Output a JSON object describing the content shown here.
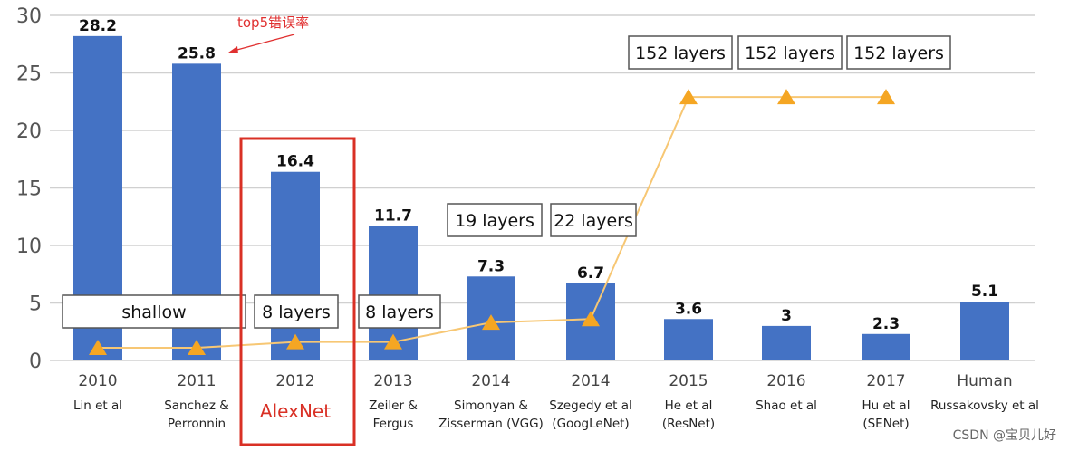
{
  "chart_data": {
    "type": "bar",
    "title": "",
    "xlabel": "",
    "ylabel": "",
    "ylim": [
      0,
      30
    ],
    "yticks": [
      0,
      5,
      10,
      15,
      20,
      25,
      30
    ],
    "grid": true,
    "categories": [
      {
        "year": "2010",
        "name": [
          "Lin et al"
        ]
      },
      {
        "year": "2011",
        "name": [
          "Sanchez &",
          "Perronnin"
        ]
      },
      {
        "year": "2012",
        "name": [
          "AlexNet"
        ],
        "highlight": true
      },
      {
        "year": "2013",
        "name": [
          "Zeiler &",
          "Fergus"
        ]
      },
      {
        "year": "2014",
        "name": [
          "Simonyan &",
          "Zisserman (VGG)"
        ]
      },
      {
        "year": "2014",
        "name": [
          "Szegedy et al",
          "(GoogLeNet)"
        ]
      },
      {
        "year": "2015",
        "name": [
          "He et al",
          "(ResNet)"
        ]
      },
      {
        "year": "2016",
        "name": [
          "Shao et al"
        ]
      },
      {
        "year": "2017",
        "name": [
          "Hu et al",
          "(SENet)"
        ]
      },
      {
        "year": "Human",
        "name": [
          "Russakovsky et al"
        ]
      }
    ],
    "values": [
      28.2,
      25.8,
      16.4,
      11.7,
      7.3,
      6.7,
      3.6,
      3,
      2.3,
      5.1
    ],
    "value_labels": [
      "28.2",
      "25.8",
      "16.4",
      "11.7",
      "7.3",
      "6.7",
      "3.6",
      "3",
      "2.3",
      "5.1"
    ],
    "bar_color": "#4472c4",
    "depth_series": {
      "marker": "triangle",
      "color": "#f5a623",
      "values": [
        1.1,
        1.1,
        1.6,
        1.6,
        3.3,
        3.6,
        22.9,
        22.9,
        22.9
      ]
    },
    "depth_labels": [
      {
        "text": "shallow"
      },
      {
        "text": "8 layers"
      },
      {
        "text": "8 layers"
      },
      {
        "text": "19 layers"
      },
      {
        "text": "22 layers"
      },
      {
        "text": "152 layers"
      },
      {
        "text": "152 layers"
      },
      {
        "text": "152 layers"
      }
    ],
    "annotation": {
      "text": "top5错误率",
      "color": "#e03030"
    },
    "highlight_color": "#d93025"
  },
  "watermark": "CSDN @宝贝儿好"
}
